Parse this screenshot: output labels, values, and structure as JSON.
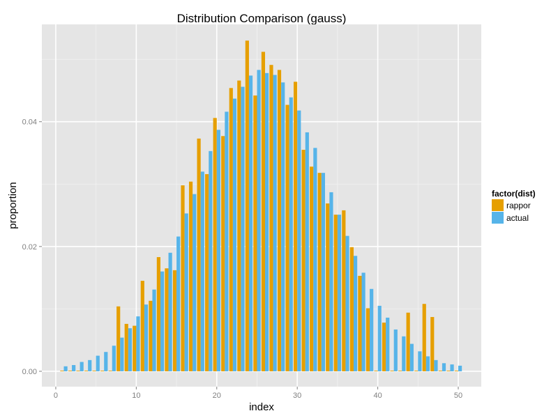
{
  "chart_data": {
    "type": "bar",
    "title": "Distribution Comparison (gauss)",
    "xlabel": "index",
    "ylabel": "proportion",
    "xlim": [
      -1.73,
      52.86
    ],
    "ylim": [
      -0.00246,
      0.0556
    ],
    "x_ticks": [
      0,
      10,
      20,
      30,
      40,
      50
    ],
    "x_tick_labels": [
      "0",
      "10",
      "20",
      "30",
      "40",
      "50"
    ],
    "y_ticks": [
      0,
      0.02,
      0.04
    ],
    "y_tick_labels": [
      "0.00",
      "0.02",
      "0.04"
    ],
    "grid": true,
    "legend": {
      "title": "factor(dist)",
      "placement": "right"
    },
    "x": [
      1,
      2,
      3,
      4,
      5,
      6,
      7,
      8,
      9,
      10,
      11,
      12,
      13,
      14,
      15,
      16,
      17,
      18,
      19,
      20,
      21,
      22,
      23,
      24,
      25,
      26,
      27,
      28,
      29,
      30,
      31,
      32,
      33,
      34,
      35,
      36,
      37,
      38,
      39,
      40,
      41,
      42,
      43,
      44,
      45,
      46,
      47,
      48,
      49,
      50
    ],
    "series": [
      {
        "name": "rappor",
        "color": "#E69F00",
        "values": [
          0.0001,
          0.0001,
          0.0001,
          0.0001,
          0.0001,
          0.0001,
          0.0001,
          0.0104,
          0.0076,
          0.0073,
          0.0145,
          0.0113,
          0.0183,
          0.0165,
          0.0162,
          0.0298,
          0.0304,
          0.0373,
          0.0316,
          0.0406,
          0.0377,
          0.0454,
          0.0466,
          0.053,
          0.0442,
          0.0512,
          0.0491,
          0.0483,
          0.0427,
          0.0464,
          0.0355,
          0.0328,
          0.0318,
          0.0269,
          0.0251,
          0.0258,
          0.0199,
          0.0153,
          0.0101,
          0.0001,
          0.0078,
          0.0001,
          0.0001,
          0.0094,
          0.0001,
          0.0108,
          0.0087,
          0.0001,
          0.0001,
          0.0001
        ]
      },
      {
        "name": "actual",
        "color": "#56B4E9",
        "values": [
          0.0008,
          0.001,
          0.0015,
          0.0018,
          0.0025,
          0.0031,
          0.0041,
          0.0054,
          0.0069,
          0.0088,
          0.0107,
          0.0131,
          0.016,
          0.019,
          0.0216,
          0.0253,
          0.0284,
          0.032,
          0.0353,
          0.0387,
          0.0416,
          0.0437,
          0.0456,
          0.0474,
          0.0483,
          0.0478,
          0.0475,
          0.0463,
          0.0439,
          0.0418,
          0.0383,
          0.0358,
          0.0318,
          0.0287,
          0.0251,
          0.0217,
          0.0185,
          0.0158,
          0.0132,
          0.0105,
          0.0086,
          0.0067,
          0.0056,
          0.0044,
          0.0032,
          0.0024,
          0.0018,
          0.0013,
          0.0011,
          0.0009
        ]
      }
    ]
  }
}
